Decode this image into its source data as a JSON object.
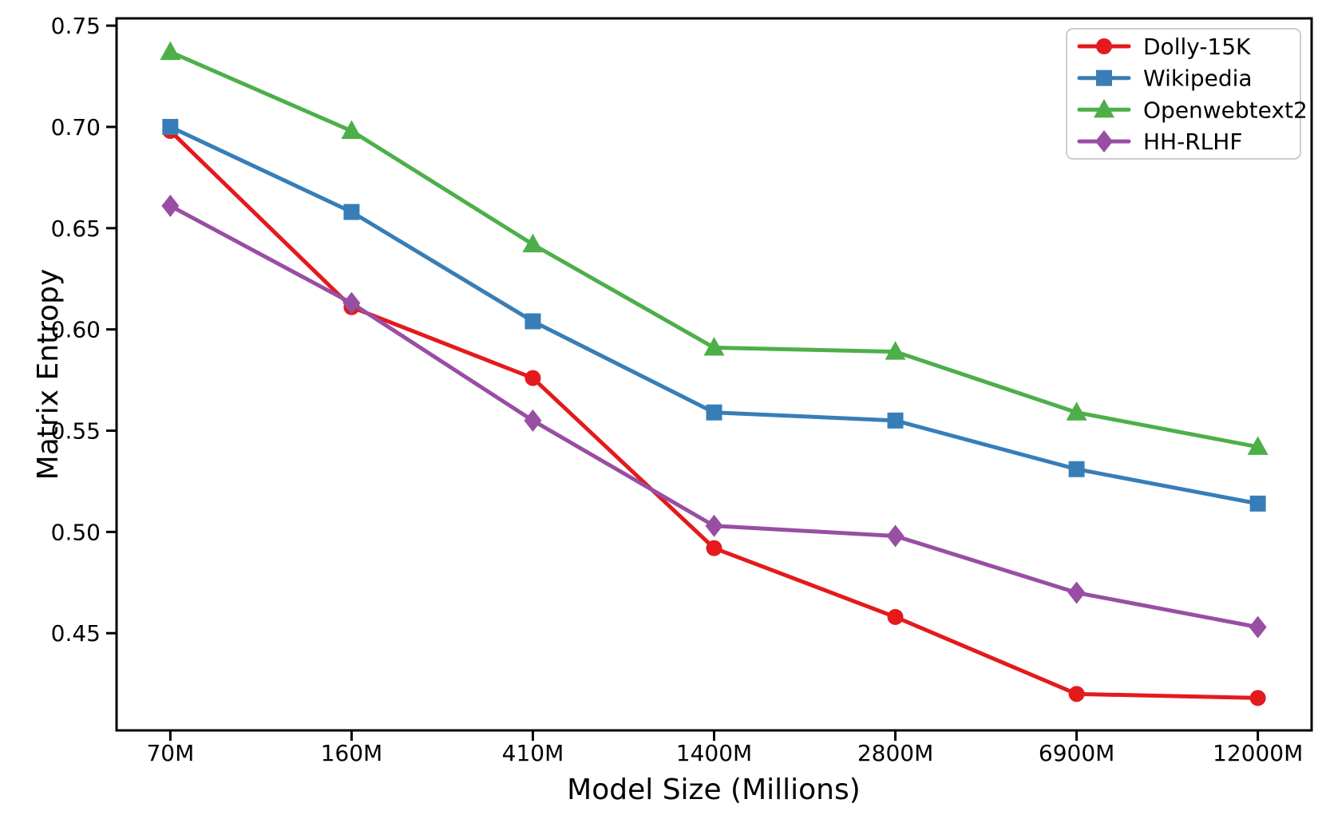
{
  "chart_data": {
    "type": "line",
    "title": "",
    "xlabel": "Model Size (Millions)",
    "ylabel": "Matrix Entropy",
    "categories": [
      "70M",
      "160M",
      "410M",
      "1400M",
      "2800M",
      "6900M",
      "12000M"
    ],
    "series": [
      {
        "name": "Dolly-15K",
        "color": "#e41a1c",
        "marker": "circle",
        "values": [
          0.698,
          0.611,
          0.576,
          0.492,
          0.458,
          0.42,
          0.418
        ]
      },
      {
        "name": "Wikipedia",
        "color": "#377eb8",
        "marker": "square",
        "values": [
          0.7,
          0.658,
          0.604,
          0.559,
          0.555,
          0.531,
          0.514
        ]
      },
      {
        "name": "Openwebtext2",
        "color": "#4daf4a",
        "marker": "triangle",
        "values": [
          0.737,
          0.698,
          0.642,
          0.591,
          0.589,
          0.559,
          0.542
        ]
      },
      {
        "name": "HH-RLHF",
        "color": "#984ea3",
        "marker": "diamond",
        "values": [
          0.661,
          0.613,
          0.555,
          0.503,
          0.498,
          0.47,
          0.453
        ]
      }
    ],
    "yticks": [
      0.45,
      0.5,
      0.55,
      0.6,
      0.65,
      0.7,
      0.75
    ],
    "ytick_labels": [
      "0.45",
      "0.50",
      "0.55",
      "0.60",
      "0.65",
      "0.70",
      "0.75"
    ],
    "ylim": [
      0.402,
      0.7536
    ],
    "grid": false,
    "legend_position": "upper right",
    "axis_color": "#000000",
    "legend_border_color": "#cccccc"
  }
}
